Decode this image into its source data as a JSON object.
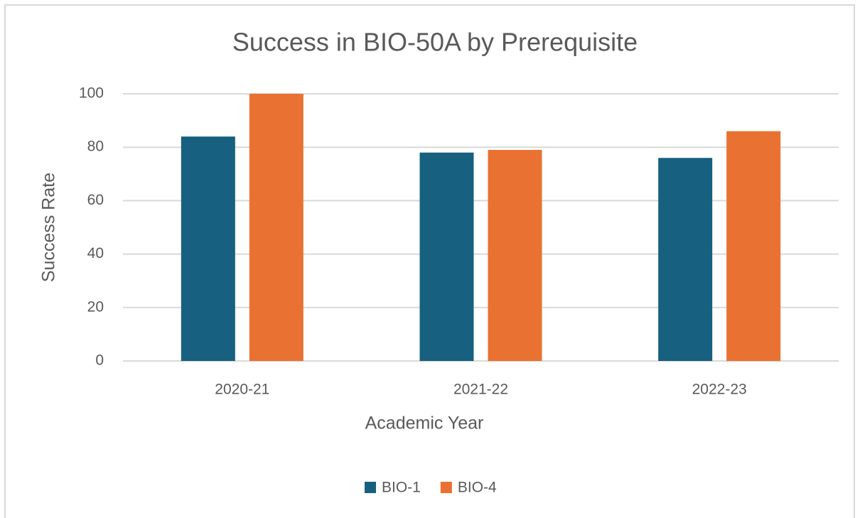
{
  "chart_data": {
    "type": "bar",
    "title": "Success in BIO-50A by Prerequisite",
    "x_label": "Academic Year",
    "y_label": "Success Rate",
    "categories": [
      "2020-21",
      "2021-22",
      "2022-23"
    ],
    "series": [
      {
        "name": "BIO-1",
        "color": "#17607f",
        "values": [
          84,
          78,
          76
        ]
      },
      {
        "name": "BIO-4",
        "color": "#e97132",
        "values": [
          100,
          79,
          86
        ]
      }
    ],
    "ylim": [
      0,
      100
    ],
    "yticks": [
      0,
      20,
      40,
      60,
      80,
      100
    ],
    "grid": true,
    "legend": "bottom"
  }
}
